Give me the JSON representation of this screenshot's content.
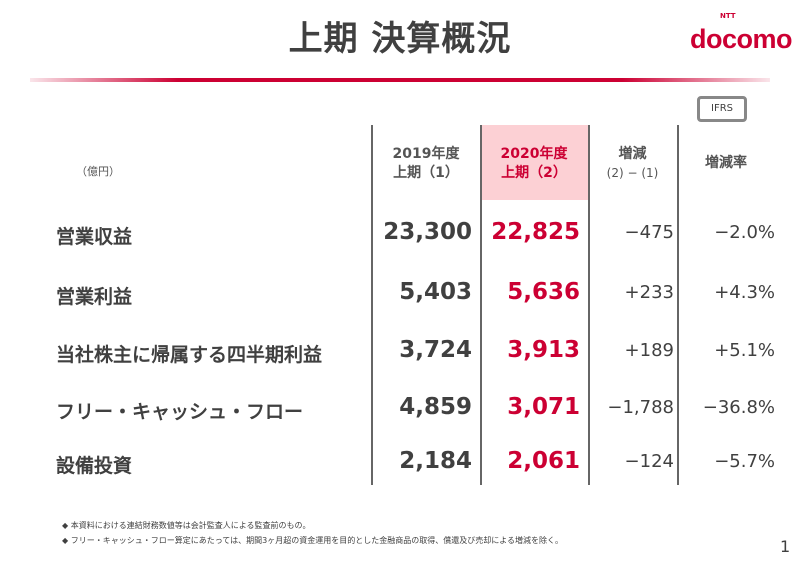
{
  "title": "上期 決算概況",
  "logo": {
    "brand": "docomo",
    "sub": "NTT"
  },
  "badge": "IFRS",
  "unit": "（億円）",
  "headers": [
    {
      "l1": "2019年度",
      "l2": "上期（1）"
    },
    {
      "l1": "2020年度",
      "l2": "上期（2）"
    },
    {
      "l1": "増減",
      "l2": "(2) − (1)"
    },
    {
      "l1": "増減率",
      "l2": ""
    }
  ],
  "rows": [
    {
      "label": "営業収益",
      "fy2019": "23,300",
      "fy2020": "22,825",
      "diff": "−475",
      "rate": "−2.0%"
    },
    {
      "label": "営業利益",
      "fy2019": "5,403",
      "fy2020": "5,636",
      "diff": "+233",
      "rate": "+4.3%"
    },
    {
      "label": "当社株主に帰属する四半期利益",
      "fy2019": "3,724",
      "fy2020": "3,913",
      "diff": "+189",
      "rate": "+5.1%"
    },
    {
      "label": "フリー・キャッシュ・フロー",
      "fy2019": "4,859",
      "fy2020": "3,071",
      "diff": "−1,788",
      "rate": "−36.8%"
    },
    {
      "label": "設備投資",
      "fy2019": "2,184",
      "fy2020": "2,061",
      "diff": "−124",
      "rate": "−5.7%"
    }
  ],
  "footnotes": [
    "◆ 本資料における連結財務数値等は会計監査人による監査前のもの。",
    "◆ フリー・キャッシュ・フロー算定にあたっては、期間3ヶ月超の資金運用を目的とした金融商品の取得、償還及び売却による増減を除く。"
  ],
  "page": "1",
  "colors": {
    "accent": "#cc0033",
    "highlight": "#fcd0d4"
  }
}
